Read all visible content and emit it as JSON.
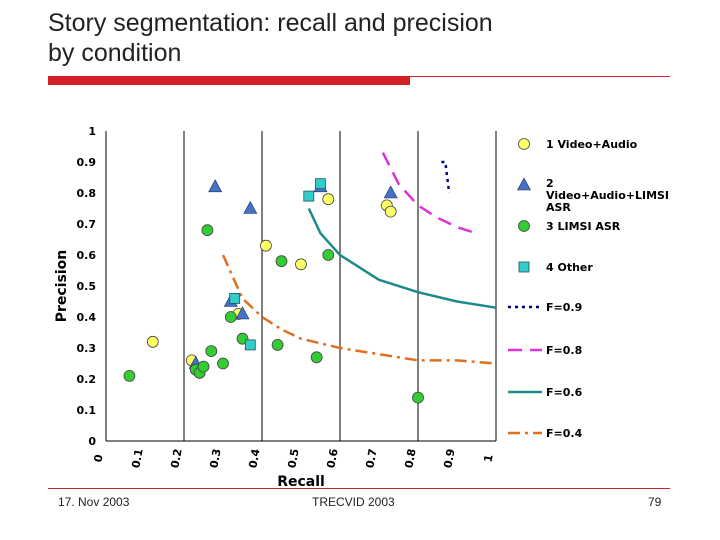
{
  "slide": {
    "title_line1": "Story segmentation: recall and precision",
    "title_line2": "by condition",
    "footer_date": "17. Nov 2003",
    "footer_center": "TRECVID 2003",
    "page_number": "79"
  },
  "colors": {
    "accent_red": "#d32027",
    "video_audio": "#ffff66",
    "video_audio_limsi": "#4472c4",
    "limsi_asr": "#33cc33",
    "other": "#33cccc",
    "f09": "#000080",
    "f08": "#dd33dd",
    "f06": "#1f8a8a",
    "f04": "#e07020"
  },
  "chart_data": {
    "type": "scatter",
    "title": "",
    "xlabel": "Recall",
    "ylabel": "Precision",
    "xlim": [
      0,
      1
    ],
    "ylim": [
      0,
      1
    ],
    "grid": "vertical lines at x = 0.2, 0.4, 0.6, 0.8, 1",
    "legend_position": "right",
    "x_ticks": [
      "0",
      "0.1",
      "0.2",
      "0.3",
      "0.4",
      "0.5",
      "0.6",
      "0.7",
      "0.8",
      "0.9",
      "1"
    ],
    "y_ticks": [
      "0",
      "0.1",
      "0.2",
      "0.3",
      "0.4",
      "0.5",
      "0.6",
      "0.7",
      "0.8",
      "0.9",
      "1"
    ],
    "series": [
      {
        "name": "1 Video+Audio",
        "marker": "circle",
        "color": "#ffff66",
        "points": [
          [
            0.12,
            0.32
          ],
          [
            0.22,
            0.26
          ],
          [
            0.24,
            0.22
          ],
          [
            0.34,
            0.41
          ],
          [
            0.41,
            0.63
          ],
          [
            0.5,
            0.57
          ],
          [
            0.57,
            0.78
          ],
          [
            0.72,
            0.76
          ],
          [
            0.73,
            0.74
          ]
        ]
      },
      {
        "name": "2 Video+Audio+LIMSI ASR",
        "marker": "triangle",
        "color": "#4472c4",
        "points": [
          [
            0.23,
            0.25
          ],
          [
            0.28,
            0.82
          ],
          [
            0.32,
            0.45
          ],
          [
            0.35,
            0.41
          ],
          [
            0.37,
            0.75
          ],
          [
            0.55,
            0.82
          ],
          [
            0.73,
            0.8
          ]
        ]
      },
      {
        "name": "3 LIMSI ASR",
        "marker": "circle",
        "color": "#33cc33",
        "points": [
          [
            0.06,
            0.21
          ],
          [
            0.23,
            0.23
          ],
          [
            0.24,
            0.22
          ],
          [
            0.25,
            0.24
          ],
          [
            0.27,
            0.29
          ],
          [
            0.26,
            0.68
          ],
          [
            0.3,
            0.25
          ],
          [
            0.32,
            0.4
          ],
          [
            0.35,
            0.33
          ],
          [
            0.44,
            0.31
          ],
          [
            0.45,
            0.58
          ],
          [
            0.54,
            0.27
          ],
          [
            0.57,
            0.6
          ],
          [
            0.8,
            0.14
          ]
        ]
      },
      {
        "name": "4 Other",
        "marker": "square",
        "color": "#33cccc",
        "points": [
          [
            0.33,
            0.46
          ],
          [
            0.37,
            0.31
          ],
          [
            0.52,
            0.79
          ],
          [
            0.55,
            0.83
          ]
        ]
      }
    ],
    "curves": [
      {
        "name": "F=0.9",
        "style": "dotted",
        "color": "#000080",
        "points": [
          [
            0.86,
            0.9
          ],
          [
            0.87,
            0.9
          ],
          [
            0.88,
            0.8
          ]
        ]
      },
      {
        "name": "F=0.8",
        "style": "dashed",
        "color": "#dd33dd",
        "points": [
          [
            0.71,
            0.93
          ],
          [
            0.75,
            0.83
          ],
          [
            0.8,
            0.76
          ],
          [
            0.85,
            0.72
          ],
          [
            0.9,
            0.69
          ],
          [
            0.95,
            0.67
          ]
        ]
      },
      {
        "name": "F=0.6",
        "style": "solid",
        "color": "#1f8a8a",
        "points": [
          [
            0.52,
            0.75
          ],
          [
            0.55,
            0.67
          ],
          [
            0.6,
            0.6
          ],
          [
            0.65,
            0.56
          ],
          [
            0.7,
            0.52
          ],
          [
            0.8,
            0.48
          ],
          [
            0.9,
            0.45
          ],
          [
            1.0,
            0.43
          ]
        ]
      },
      {
        "name": "F=0.4",
        "style": "dash-dot",
        "color": "#e07020",
        "points": [
          [
            0.3,
            0.6
          ],
          [
            0.35,
            0.46
          ],
          [
            0.4,
            0.4
          ],
          [
            0.45,
            0.36
          ],
          [
            0.5,
            0.33
          ],
          [
            0.6,
            0.3
          ],
          [
            0.7,
            0.28
          ],
          [
            0.8,
            0.26
          ],
          [
            0.9,
            0.26
          ],
          [
            1.0,
            0.25
          ]
        ]
      }
    ]
  }
}
